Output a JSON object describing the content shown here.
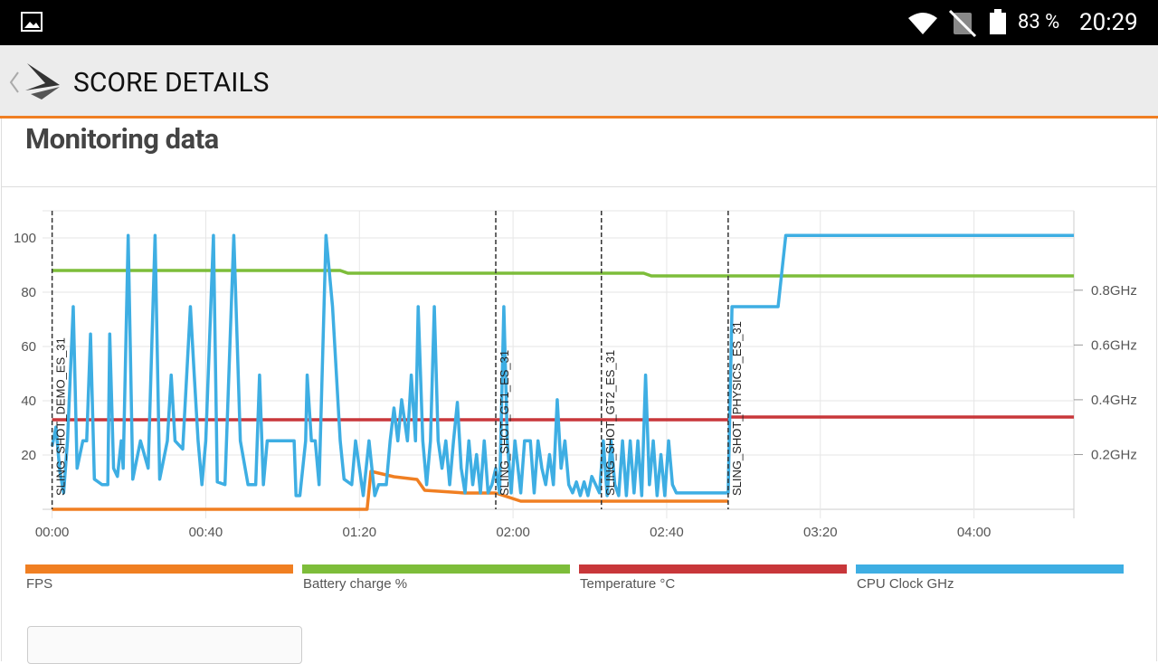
{
  "status_bar": {
    "battery": "83 %",
    "time": "20:29"
  },
  "header": {
    "title": "SCORE DETAILS"
  },
  "section": {
    "title": "Monitoring data"
  },
  "chart_data": {
    "type": "line",
    "xlim": [
      -2.5,
      266
    ],
    "ylim": [
      0,
      110
    ],
    "y2lim": [
      0,
      1.09
    ],
    "xticks": [
      {
        "value": 0,
        "label": "00:00"
      },
      {
        "value": 40,
        "label": "00:40"
      },
      {
        "value": 80,
        "label": "01:20"
      },
      {
        "value": 120,
        "label": "02:00"
      },
      {
        "value": 160,
        "label": "02:40"
      },
      {
        "value": 200,
        "label": "03:20"
      },
      {
        "value": 240,
        "label": "04:00"
      }
    ],
    "yticks": [
      20,
      40,
      60,
      80,
      100
    ],
    "y2ticks": [
      {
        "value": 0.2,
        "label": "0.2GHz"
      },
      {
        "value": 0.4,
        "label": "0.4GHz"
      },
      {
        "value": 0.6,
        "label": "0.6GHz"
      },
      {
        "value": 0.8,
        "label": "0.8GHz"
      }
    ],
    "grid": true,
    "markers": [
      {
        "x": 0,
        "label": "SLING_SHOT_DEMO_ES_31"
      },
      {
        "x": 115.5,
        "label": "SLING_SHOT_GT1_ES_31"
      },
      {
        "x": 143,
        "label": "SLING_SHOT_GT2_ES_31"
      },
      {
        "x": 176,
        "label": "SLING_SHOT_PHYSICS_ES_31"
      }
    ],
    "series": [
      {
        "name": "FPS",
        "color": "#f07f22",
        "x": [
          0,
          82,
          83,
          89,
          95,
          97,
          107.5,
          115.5,
          122,
          176
        ],
        "values": [
          0,
          0,
          14,
          12,
          11,
          7,
          6,
          6,
          3,
          3
        ]
      },
      {
        "name": "Battery charge %",
        "color": "#7dbd3a",
        "x": [
          0,
          75,
          77,
          154,
          156,
          266
        ],
        "values": [
          88,
          88,
          87,
          87,
          86,
          86
        ]
      },
      {
        "name": "Temperature °C",
        "color": "#c8373a",
        "x": [
          0,
          176,
          176.5,
          266
        ],
        "values": [
          33,
          33,
          34,
          34
        ]
      },
      {
        "name": "CPU Clock GHz",
        "color": "#3eaee3",
        "axis": "y2",
        "x": [
          0,
          1,
          2,
          3,
          4,
          5.5,
          6.5,
          8,
          9,
          10,
          11,
          13,
          14.5,
          15,
          16,
          17,
          18,
          18.5,
          19.8,
          21,
          23,
          25,
          26.8,
          28,
          30,
          31,
          32,
          34,
          36,
          37,
          38,
          39,
          40,
          42,
          43,
          45,
          47.3,
          49,
          51,
          53,
          54,
          55,
          56,
          63,
          63.5,
          64.5,
          66,
          66.4,
          67.5,
          68.5,
          69.5,
          71.3,
          73,
          75,
          76,
          78,
          79,
          81,
          82.5,
          84,
          85,
          87,
          88,
          89,
          90,
          91,
          92.5,
          93.5,
          94.6,
          95.3,
          96.5,
          97.5,
          98.5,
          99.5,
          100.5,
          101.5,
          102.5,
          103.5,
          104.5,
          105.5,
          106.5,
          107.5,
          108.5,
          109.5,
          110.5,
          111.5,
          112.5,
          113.5,
          114.5,
          115.5,
          116.5,
          117.6,
          118.5,
          119.5,
          120.5,
          122,
          123,
          124.5,
          125.5,
          126.5,
          127.5,
          128.5,
          129.5,
          130.5,
          131.5,
          132.5,
          133.5,
          134.5,
          135.5,
          136.5,
          137.5,
          138.5,
          139.5,
          140.5,
          141.5,
          142.5,
          143.5,
          144.5,
          145.5,
          146.5,
          147.5,
          148.5,
          149.5,
          150.5,
          151.5,
          152.5,
          153.5,
          154.5,
          155.5,
          156.5,
          157.5,
          158.5,
          159.5,
          160.5,
          161.5,
          162.5,
          163,
          176,
          177,
          189,
          191,
          266
        ],
        "values": [
          0.23,
          0.3,
          0.14,
          0.06,
          0.25,
          0.74,
          0.15,
          0.25,
          0.25,
          0.64,
          0.11,
          0.09,
          0.09,
          0.64,
          0.15,
          0.12,
          0.25,
          0.15,
          1.0,
          0.11,
          0.25,
          0.15,
          1.0,
          0.11,
          0.25,
          0.49,
          0.25,
          0.22,
          0.74,
          0.49,
          0.25,
          0.09,
          0.25,
          1.0,
          0.1,
          0.09,
          1.0,
          0.25,
          0.09,
          0.09,
          0.49,
          0.09,
          0.25,
          0.25,
          0.05,
          0.05,
          0.25,
          0.49,
          0.25,
          0.25,
          0.09,
          1.0,
          0.74,
          0.25,
          0.11,
          0.09,
          0.25,
          0.05,
          0.25,
          0.05,
          0.09,
          0.09,
          0.25,
          0.37,
          0.25,
          0.4,
          0.25,
          0.49,
          0.25,
          0.74,
          0.25,
          0.09,
          0.25,
          0.74,
          0.25,
          0.15,
          0.25,
          0.09,
          0.25,
          0.39,
          0.15,
          0.06,
          0.25,
          0.09,
          0.2,
          0.06,
          0.25,
          0.06,
          0.09,
          0.15,
          0.06,
          0.74,
          0.25,
          0.06,
          0.25,
          0.06,
          0.25,
          0.25,
          0.06,
          0.25,
          0.15,
          0.09,
          0.2,
          0.09,
          0.4,
          0.15,
          0.25,
          0.09,
          0.06,
          0.1,
          0.05,
          0.1,
          0.05,
          0.12,
          0.09,
          0.06,
          0.25,
          0.05,
          0.25,
          0.09,
          0.05,
          0.25,
          0.05,
          0.25,
          0.06,
          0.25,
          0.05,
          0.49,
          0.09,
          0.25,
          0.05,
          0.2,
          0.05,
          0.25,
          0.09,
          0.06,
          0.06,
          0.06,
          0.74,
          0.74,
          1.0,
          1.0
        ]
      }
    ]
  }
}
